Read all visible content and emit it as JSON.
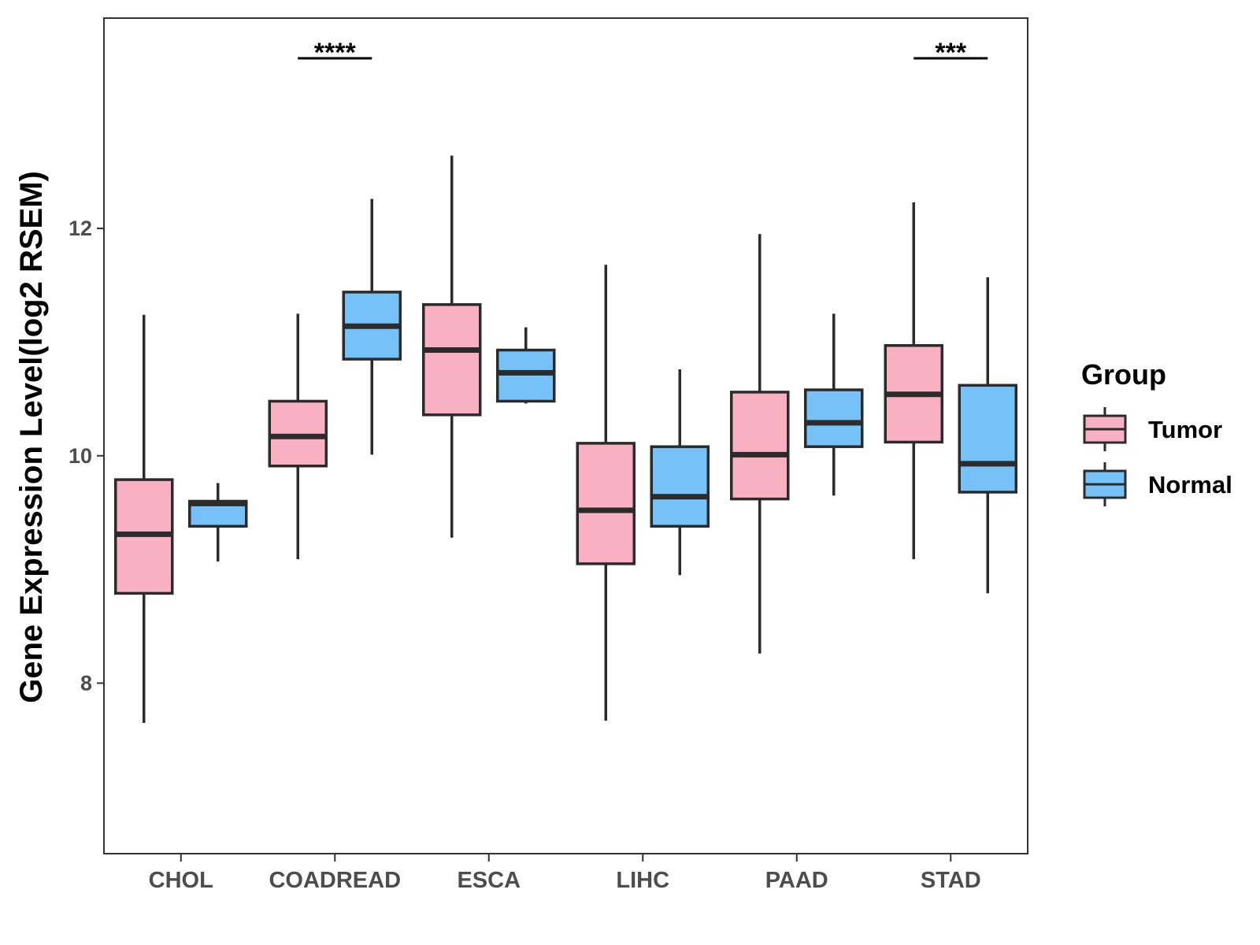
{
  "chart_data": {
    "type": "boxplot",
    "title": "",
    "xlabel": "",
    "ylabel": "Gene Expression Level(log2 RSEM)",
    "ylim": [
      6.5,
      13.85
    ],
    "yticks": [
      8,
      10,
      12
    ],
    "ytick_labels": [
      "8",
      "10",
      "12"
    ],
    "categories": [
      "CHOL",
      "COADREAD",
      "ESCA",
      "LIHC",
      "PAAD",
      "STAD"
    ],
    "legend": {
      "title": "Group",
      "position": "right",
      "entries": [
        "Tumor",
        "Normal"
      ]
    },
    "series": [
      {
        "name": "Tumor",
        "color": "#F9B0C3",
        "boxes": [
          {
            "min": 7.65,
            "q1": 8.79,
            "median": 9.31,
            "q3": 9.79,
            "max": 11.24
          },
          {
            "min": 9.09,
            "q1": 9.91,
            "median": 10.17,
            "q3": 10.48,
            "max": 11.25
          },
          {
            "min": 9.28,
            "q1": 10.36,
            "median": 10.93,
            "q3": 11.33,
            "max": 12.64
          },
          {
            "min": 7.67,
            "q1": 9.05,
            "median": 9.52,
            "q3": 10.11,
            "max": 11.68
          },
          {
            "min": 8.26,
            "q1": 9.62,
            "median": 10.01,
            "q3": 10.56,
            "max": 11.95
          },
          {
            "min": 9.09,
            "q1": 10.12,
            "median": 10.54,
            "q3": 10.97,
            "max": 12.23
          }
        ]
      },
      {
        "name": "Normal",
        "color": "#76C1F8",
        "boxes": [
          {
            "min": 9.07,
            "q1": 9.38,
            "median": 9.58,
            "q3": 9.6,
            "max": 9.76
          },
          {
            "min": 10.01,
            "q1": 10.85,
            "median": 11.14,
            "q3": 11.44,
            "max": 12.26
          },
          {
            "min": 10.46,
            "q1": 10.48,
            "median": 10.73,
            "q3": 10.93,
            "max": 11.13
          },
          {
            "min": 8.95,
            "q1": 9.38,
            "median": 9.64,
            "q3": 10.08,
            "max": 10.76
          },
          {
            "min": 9.65,
            "q1": 10.08,
            "median": 10.29,
            "q3": 10.58,
            "max": 11.25
          },
          {
            "min": 8.79,
            "q1": 9.68,
            "median": 9.93,
            "q3": 10.62,
            "max": 11.57
          }
        ]
      }
    ],
    "significance": [
      {
        "category": "COADREAD",
        "label": "****"
      },
      {
        "category": "STAD",
        "label": "***"
      }
    ],
    "grid": false
  }
}
